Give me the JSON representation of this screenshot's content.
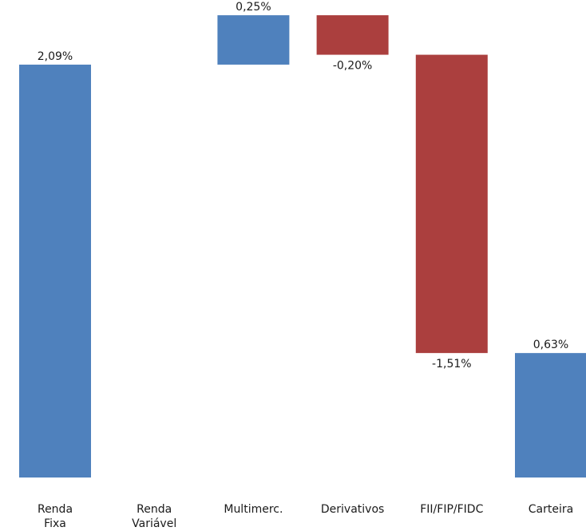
{
  "chart_data": {
    "type": "bar",
    "subtype": "waterfall",
    "title": "",
    "xlabel": "",
    "ylabel": "",
    "grid": false,
    "legend": "none",
    "ylim": [
      0,
      2.34
    ],
    "categories": [
      [
        "Renda",
        "Fixa"
      ],
      [
        "Renda",
        "Variável"
      ],
      [
        "Multimerc."
      ],
      [
        "Derivativos"
      ],
      [
        "FII/FIP/FIDC"
      ],
      [
        "Carteira"
      ]
    ],
    "values": [
      2.09,
      0.0,
      0.25,
      -0.2,
      -1.51,
      0.63
    ],
    "bar_kinds": [
      "delta",
      "delta",
      "delta",
      "delta",
      "delta",
      "total"
    ],
    "data_labels": [
      "2,09%",
      "",
      "0,25%",
      "-0,20%",
      "-1,51%",
      "0,63%"
    ],
    "colors": {
      "positive": "#4f81bd",
      "negative": "#ab3f3e",
      "total": "#4f81bd"
    }
  }
}
